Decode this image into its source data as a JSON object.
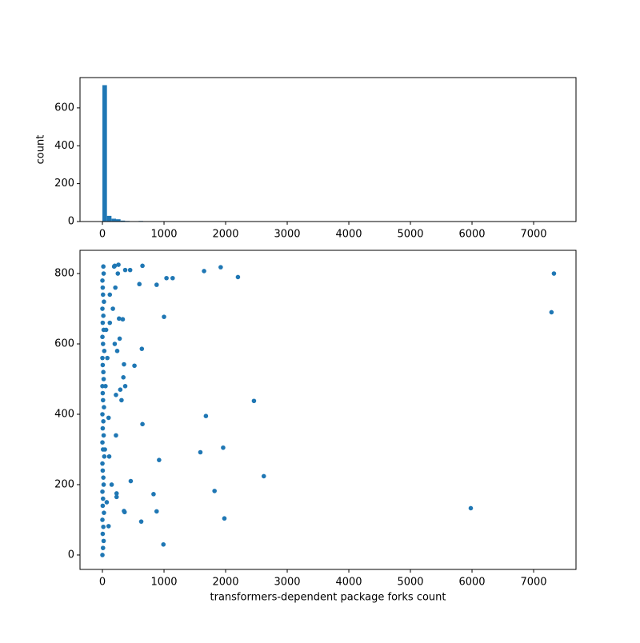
{
  "chart_data": [
    {
      "type": "histogram",
      "ylabel": "count",
      "color": "#1f77b4",
      "bins": [
        0,
        73.5,
        147,
        220.5,
        294,
        367.5,
        441,
        514.5,
        588,
        661.5,
        1911,
        1984.5,
        7276.5,
        7350
      ],
      "values": [
        720,
        30,
        15,
        12,
        5,
        3,
        2,
        1,
        3,
        0,
        2,
        0,
        2
      ],
      "xlim": [
        -364,
        7688
      ],
      "xticks": [
        0,
        1000,
        2000,
        3000,
        4000,
        5000,
        6000,
        7000
      ],
      "ylim": [
        0,
        760
      ],
      "yticks": [
        0,
        200,
        400,
        600
      ]
    },
    {
      "type": "scatter",
      "xlabel": "transformers-dependent package forks count",
      "color": "#1f77b4",
      "x": [
        7330,
        7290,
        5980,
        2620,
        2460,
        2200,
        1920,
        1960,
        1980,
        1820,
        1680,
        1650,
        1590,
        1140,
        1040,
        1000,
        990,
        920,
        880,
        880,
        830,
        650,
        640,
        650,
        630,
        600,
        520,
        460,
        450,
        370,
        370,
        360,
        350,
        350,
        340,
        330,
        310,
        290,
        280,
        270,
        260,
        240,
        230,
        230,
        220,
        220,
        200,
        200,
        190,
        150,
        100,
        100,
        110,
        120,
        120,
        210,
        250,
        170,
        60,
        80,
        40,
        70,
        50,
        0,
        10,
        20,
        5,
        15,
        0,
        25,
        5,
        10,
        0,
        20,
        15,
        5,
        0,
        30,
        10,
        0,
        20,
        5,
        15,
        0,
        25,
        10,
        5,
        0,
        20,
        15,
        5,
        0,
        30,
        10,
        0,
        20,
        5,
        15,
        0,
        25,
        10,
        5,
        0,
        20,
        15
      ],
      "y": [
        800,
        690,
        133,
        224,
        438,
        790,
        818,
        305,
        104,
        182,
        395,
        807,
        292,
        787,
        787,
        677,
        30,
        270,
        768,
        124,
        173,
        822,
        586,
        372,
        95,
        770,
        538,
        210,
        810,
        810,
        480,
        122,
        125,
        542,
        505,
        670,
        440,
        470,
        615,
        672,
        825,
        580,
        165,
        175,
        455,
        340,
        822,
        600,
        820,
        200,
        82,
        390,
        280,
        660,
        740,
        760,
        800,
        700,
        640,
        560,
        300,
        150,
        480,
        0,
        20,
        40,
        60,
        80,
        100,
        120,
        140,
        160,
        180,
        200,
        220,
        240,
        260,
        280,
        300,
        320,
        340,
        360,
        380,
        400,
        420,
        440,
        460,
        480,
        500,
        520,
        540,
        560,
        580,
        600,
        620,
        640,
        660,
        680,
        700,
        720,
        740,
        760,
        780,
        800,
        820
      ],
      "xlim": [
        -364,
        7688
      ],
      "xticks": [
        0,
        1000,
        2000,
        3000,
        4000,
        5000,
        6000,
        7000
      ],
      "ylim": [
        -41,
        866
      ],
      "yticks": [
        0,
        200,
        400,
        600,
        800
      ]
    }
  ]
}
